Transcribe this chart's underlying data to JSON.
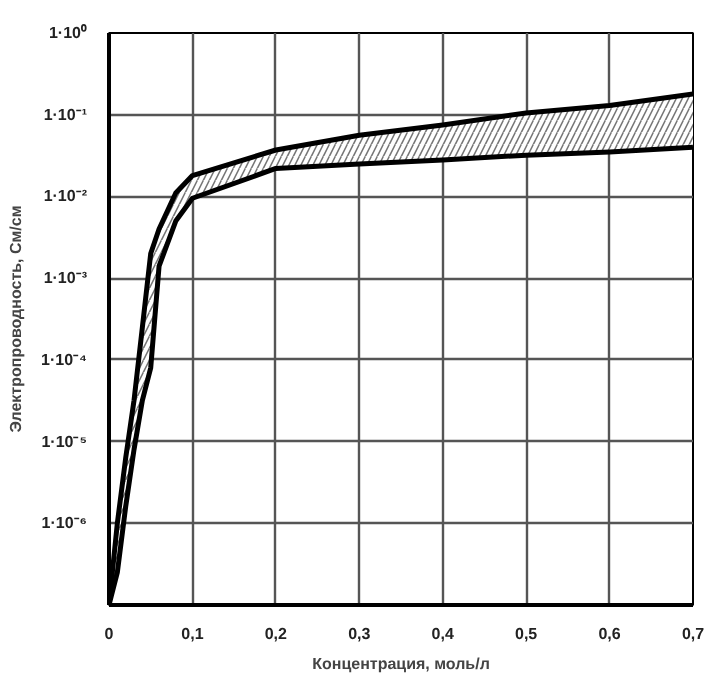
{
  "chart_data": {
    "type": "line",
    "xlabel": "Концентрация, моль/л",
    "ylabel": "Электропроводность, См/см",
    "x": [
      0,
      0.01,
      0.02,
      0.03,
      0.04,
      0.05,
      0.06,
      0.08,
      0.1,
      0.2,
      0.3,
      0.4,
      0.5,
      0.6,
      0.7
    ],
    "series": [
      {
        "color": "#000000",
        "values": [
          1e-07,
          1e-06,
          6.3e-06,
          3.2e-05,
          0.00025,
          0.002,
          0.004,
          0.011,
          0.018,
          0.037,
          0.056,
          0.075,
          0.105,
          0.13,
          0.18
        ],
        "lower": [
          1e-07,
          2.5e-07,
          1.6e-06,
          8e-06,
          3.2e-05,
          8e-05,
          0.0014,
          0.005,
          0.0095,
          0.022,
          0.025,
          0.028,
          0.032,
          0.035,
          0.04
        ],
        "upper": [
          1e-07,
          1e-06,
          6.3e-06,
          3.2e-05,
          0.00025,
          0.002,
          0.004,
          0.011,
          0.018,
          0.037,
          0.056,
          0.075,
          0.105,
          0.13,
          0.18
        ]
      },
      {
        "color": "#000000",
        "values": [
          1e-07,
          2.5e-07,
          1.6e-06,
          8e-06,
          3.2e-05,
          8e-05,
          0.0014,
          0.005,
          0.0095,
          0.022,
          0.025,
          0.028,
          0.032,
          0.035,
          0.04
        ]
      }
    ],
    "xlim": [
      0,
      0.7
    ],
    "xticks": [
      {
        "value": 0,
        "label": "0"
      },
      {
        "value": 0.1,
        "label": "0,1"
      },
      {
        "value": 0.2,
        "label": "0,2"
      },
      {
        "value": 0.3,
        "label": "0,3"
      },
      {
        "value": 0.4,
        "label": "0,4"
      },
      {
        "value": 0.5,
        "label": "0,5"
      },
      {
        "value": 0.6,
        "label": "0,6"
      },
      {
        "value": 0.7,
        "label": "0,7"
      }
    ],
    "ylim": [
      1e-07,
      1
    ],
    "yticks": [
      {
        "value": 1e-07,
        "label": null
      },
      {
        "value": 1e-06,
        "label": "1·10⁻⁶"
      },
      {
        "value": 1e-05,
        "label": "1·10⁻⁵"
      },
      {
        "value": 0.0001,
        "label": "1·10⁻⁴"
      },
      {
        "value": 0.001,
        "label": "1·10⁻³"
      },
      {
        "value": 0.01,
        "label": "1·10⁻²"
      },
      {
        "value": 0.1,
        "label": "1·10⁻¹"
      },
      {
        "value": 1,
        "label": "1·10⁰"
      }
    ],
    "log": "y",
    "grid": true,
    "line_style": "solid"
  }
}
